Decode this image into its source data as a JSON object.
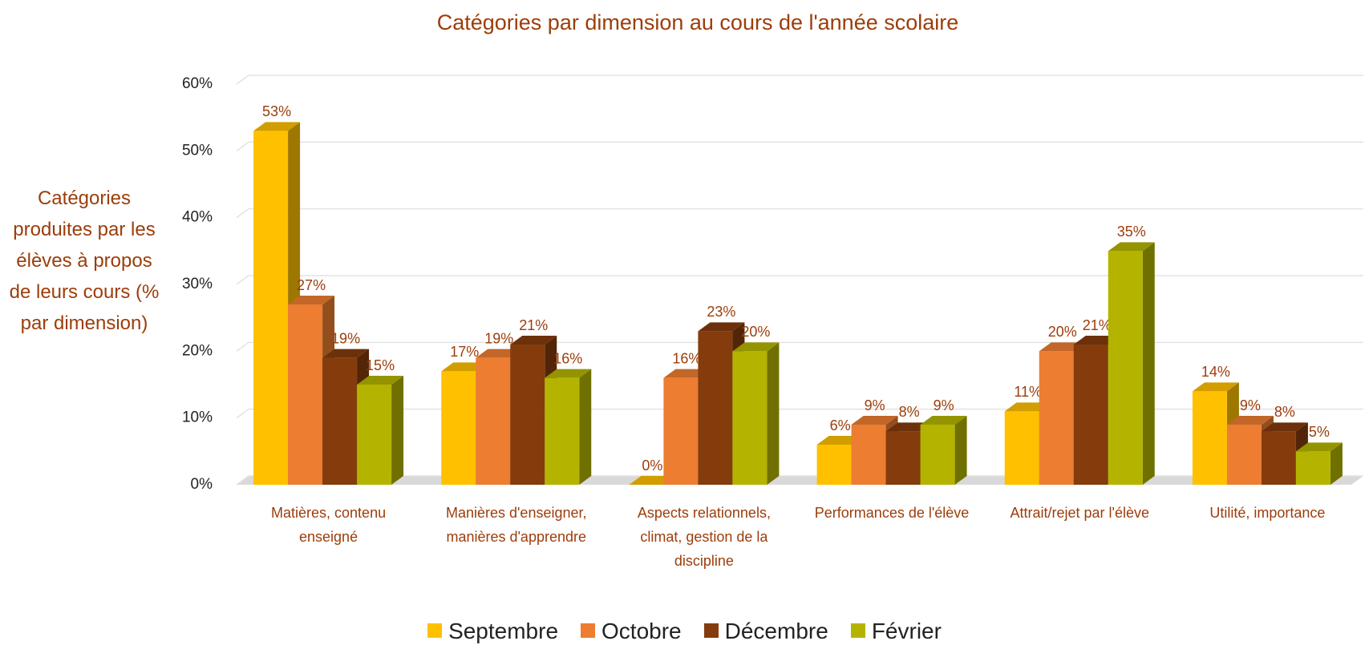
{
  "chart_data": {
    "type": "bar3d",
    "title": "Catégories par dimension au cours de l'année scolaire",
    "y_label": "Catégories produites par les élèves à propos de leurs cours (% par dimension)",
    "categories": [
      "Matières, contenu enseigné",
      "Manières d'enseigner, manières d'apprendre",
      "Aspects relationnels, climat, gestion de la discipline",
      "Performances de l'élève",
      "Attrait/rejet par l'élève",
      "Utilité, importance"
    ],
    "series": [
      {
        "name": "Septembre",
        "color": "#ffc000",
        "values": [
          53,
          17,
          0,
          6,
          11,
          14
        ],
        "value_labels": [
          "53%",
          "17%",
          "0%",
          "6%",
          "11%",
          "14%"
        ]
      },
      {
        "name": "Octobre",
        "color": "#ed7d31",
        "values": [
          27,
          19,
          16,
          9,
          20,
          9
        ],
        "value_labels": [
          "27%",
          "19%",
          "16%",
          "9%",
          "20%",
          "9%"
        ]
      },
      {
        "name": "Décembre",
        "color": "#843c0c",
        "values": [
          19,
          21,
          23,
          8,
          21,
          8
        ],
        "value_labels": [
          "19%",
          "21%",
          "23%",
          "8%",
          "21%",
          "8%"
        ]
      },
      {
        "name": "Février",
        "color": "#b4b400",
        "values": [
          15,
          16,
          20,
          9,
          35,
          5
        ],
        "value_labels": [
          "15%",
          "16%",
          "20%",
          "9%",
          "35%",
          "5%"
        ]
      }
    ],
    "ylim": [
      0,
      60
    ],
    "yticks": [
      {
        "value": 0,
        "label": "0%"
      },
      {
        "value": 10,
        "label": "10%"
      },
      {
        "value": 20,
        "label": "20%"
      },
      {
        "value": 30,
        "label": "30%"
      },
      {
        "value": 40,
        "label": "40%"
      },
      {
        "value": 50,
        "label": "50%"
      },
      {
        "value": 60,
        "label": "60%"
      }
    ],
    "grid": true,
    "legend": "bottom"
  }
}
